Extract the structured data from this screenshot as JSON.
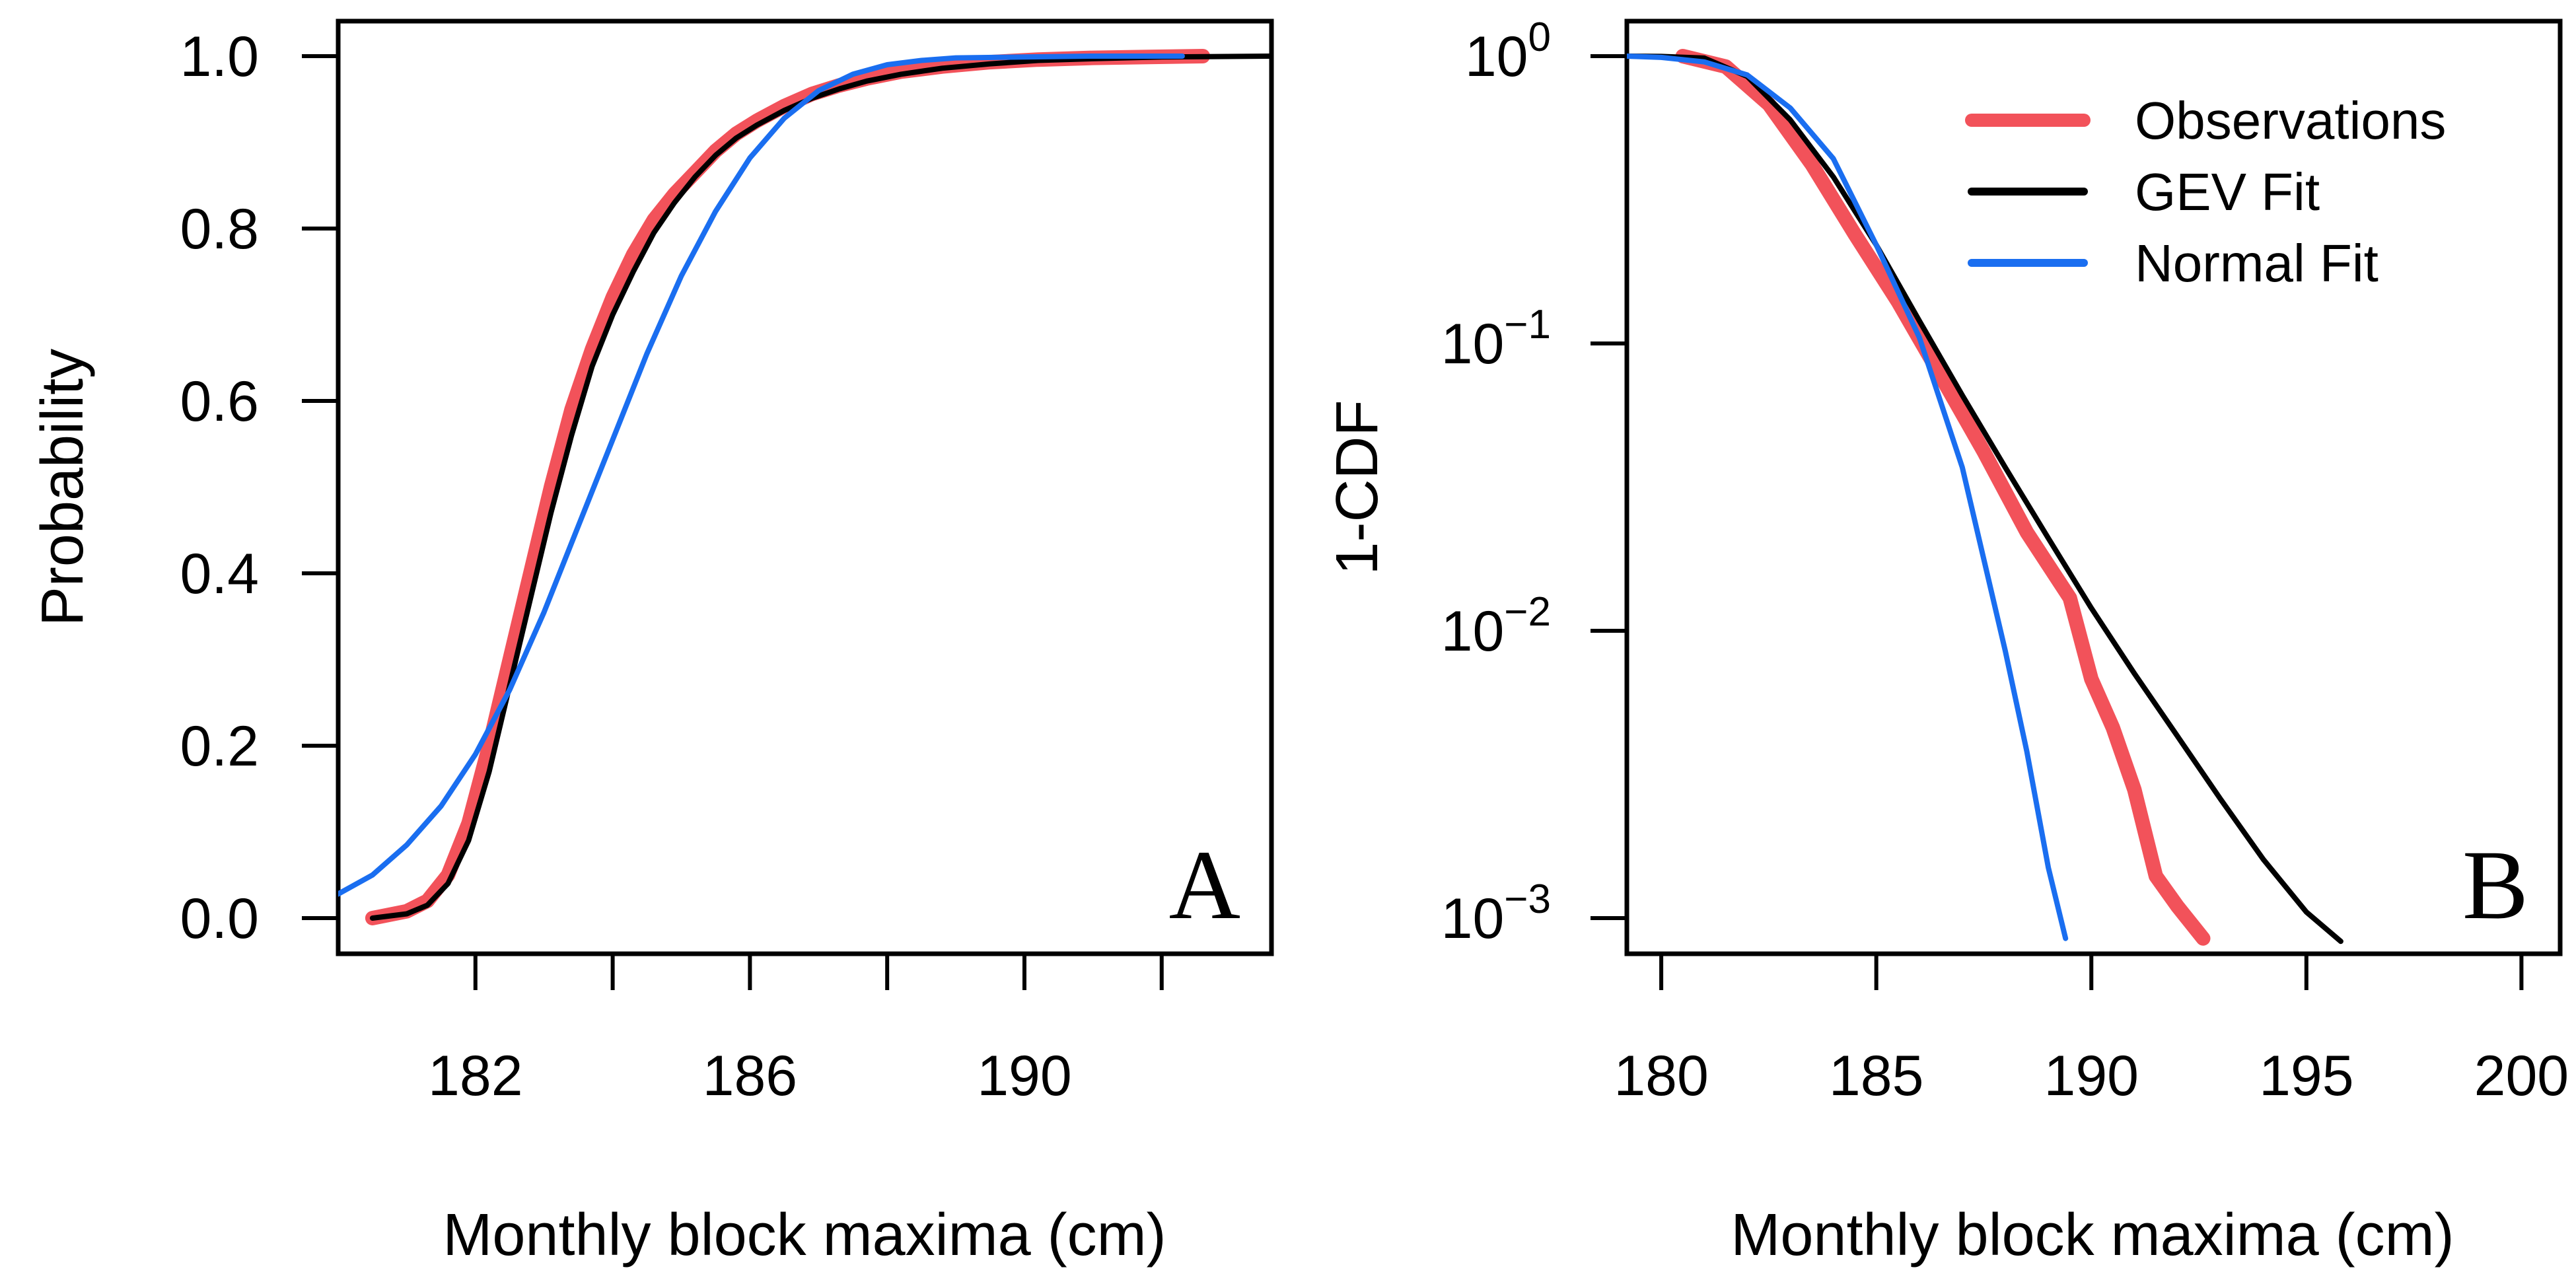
{
  "colors": {
    "observations": "#f2525a",
    "gev_fit": "#000000",
    "normal_fit": "#1a6ef0"
  },
  "chart_data": [
    {
      "panel": "A",
      "type": "line",
      "xlabel": "Monthly block maxima (cm)",
      "ylabel": "Probability",
      "xlim": [
        180,
        193.6
      ],
      "ylim": [
        0,
        1
      ],
      "xticks": [
        182,
        184,
        186,
        188,
        190,
        192
      ],
      "xtick_labels": [
        "182",
        "186",
        "190"
      ],
      "xtick_label_values": [
        182,
        186,
        190
      ],
      "yticks": [
        0.0,
        0.2,
        0.4,
        0.6,
        0.8,
        1.0
      ],
      "ytick_labels": [
        "0.0",
        "0.2",
        "0.4",
        "0.6",
        "0.8",
        "1.0"
      ],
      "grid": false,
      "series": [
        {
          "name": "Observations",
          "color_key": "observations",
          "x": [
            180.5,
            181.0,
            181.3,
            181.6,
            181.9,
            182.2,
            182.5,
            182.8,
            183.1,
            183.4,
            183.7,
            184.0,
            184.3,
            184.6,
            184.9,
            185.2,
            185.5,
            185.8,
            186.1,
            186.5,
            186.9,
            187.3,
            187.7,
            188.2,
            188.8,
            189.5,
            190.2,
            191.0,
            191.8,
            192.6
          ],
          "y": [
            0.0,
            0.008,
            0.02,
            0.05,
            0.11,
            0.2,
            0.3,
            0.4,
            0.5,
            0.59,
            0.66,
            0.72,
            0.77,
            0.81,
            0.84,
            0.865,
            0.89,
            0.91,
            0.925,
            0.942,
            0.956,
            0.966,
            0.974,
            0.982,
            0.988,
            0.993,
            0.996,
            0.998,
            0.999,
            1.0
          ]
        },
        {
          "name": "GEV Fit",
          "color_key": "gev_fit",
          "x": [
            180.5,
            181.0,
            181.3,
            181.6,
            181.9,
            182.2,
            182.5,
            182.8,
            183.1,
            183.4,
            183.7,
            184.0,
            184.3,
            184.6,
            184.9,
            185.2,
            185.5,
            185.8,
            186.1,
            186.5,
            186.9,
            187.3,
            187.7,
            188.2,
            188.8,
            189.5,
            190.2,
            191.0,
            192.0,
            193.6
          ],
          "y": [
            0.0,
            0.005,
            0.015,
            0.04,
            0.09,
            0.17,
            0.27,
            0.37,
            0.47,
            0.56,
            0.64,
            0.7,
            0.75,
            0.795,
            0.83,
            0.86,
            0.885,
            0.905,
            0.92,
            0.937,
            0.951,
            0.962,
            0.971,
            0.979,
            0.986,
            0.991,
            0.995,
            0.997,
            0.999,
            1.0
          ]
        },
        {
          "name": "Normal Fit",
          "color_key": "normal_fit",
          "x": [
            180.0,
            180.5,
            181.0,
            181.5,
            182.0,
            182.5,
            183.0,
            183.5,
            184.0,
            184.5,
            185.0,
            185.5,
            186.0,
            186.5,
            187.0,
            187.5,
            188.0,
            188.5,
            189.0,
            190.0,
            191.0,
            192.3
          ],
          "y": [
            0.028,
            0.05,
            0.085,
            0.13,
            0.19,
            0.265,
            0.355,
            0.455,
            0.555,
            0.655,
            0.745,
            0.82,
            0.882,
            0.928,
            0.96,
            0.979,
            0.99,
            0.995,
            0.998,
            0.999,
            1.0,
            1.0
          ]
        }
      ]
    },
    {
      "panel": "B",
      "type": "line",
      "xlabel": "Monthly block maxima (cm)",
      "ylabel": "1-CDF",
      "xlim": [
        179.2,
        200.9
      ],
      "ylim": [
        0.00083,
        1.3
      ],
      "yscale": "log",
      "xticks": [
        180,
        185,
        190,
        195,
        200
      ],
      "xtick_labels": [
        "180",
        "185",
        "190",
        "195",
        "200"
      ],
      "yticks": [
        1,
        0.1,
        0.01,
        0.001
      ],
      "ytick_labels": [
        {
          "base": "10",
          "exp": "0"
        },
        {
          "base": "10",
          "exp": "−1"
        },
        {
          "base": "10",
          "exp": "−2"
        },
        {
          "base": "10",
          "exp": "−3"
        }
      ],
      "grid": false,
      "legend": {
        "position": "top-right",
        "entries": [
          "Observations",
          "GEV Fit",
          "Normal Fit"
        ]
      },
      "series": [
        {
          "name": "Observations",
          "color_key": "observations",
          "x": [
            180.5,
            181.5,
            182.5,
            183.5,
            184.5,
            185.5,
            186.5,
            187.5,
            188.5,
            189.5,
            190.0,
            190.5,
            191.0,
            191.5,
            192.0,
            192.6
          ],
          "y": [
            1.0,
            0.92,
            0.68,
            0.42,
            0.24,
            0.14,
            0.077,
            0.042,
            0.022,
            0.013,
            0.0068,
            0.0046,
            0.0028,
            0.0014,
            0.0011,
            0.00085
          ]
        },
        {
          "name": "GEV Fit",
          "color_key": "gev_fit",
          "x": [
            179.2,
            180.0,
            181.0,
            182.0,
            183.0,
            184.0,
            185.0,
            186.0,
            187.0,
            188.0,
            189.0,
            190.0,
            191.0,
            192.0,
            193.0,
            194.0,
            195.0,
            195.8
          ],
          "y": [
            1.0,
            0.998,
            0.985,
            0.85,
            0.6,
            0.38,
            0.22,
            0.12,
            0.066,
            0.037,
            0.021,
            0.012,
            0.0071,
            0.0043,
            0.0026,
            0.0016,
            0.00105,
            0.00083
          ]
        },
        {
          "name": "Normal Fit",
          "color_key": "normal_fit",
          "x": [
            179.2,
            180.0,
            181.0,
            182.0,
            183.0,
            184.0,
            185.0,
            186.0,
            187.0,
            188.0,
            188.5,
            189.0,
            189.4
          ],
          "y": [
            1.0,
            0.99,
            0.955,
            0.86,
            0.66,
            0.44,
            0.22,
            0.105,
            0.037,
            0.0085,
            0.0038,
            0.0015,
            0.00085
          ]
        }
      ]
    }
  ]
}
